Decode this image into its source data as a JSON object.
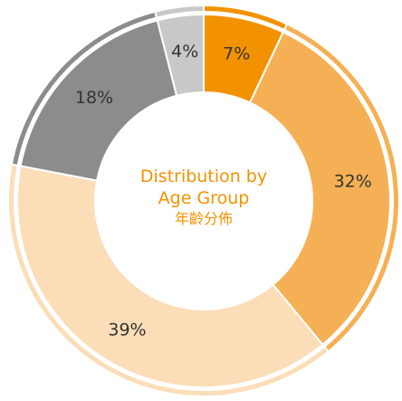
{
  "chart_data": {
    "type": "donut",
    "title": "Distribution by Age Group",
    "subtitle": "年齡分佈",
    "values": [
      7,
      32,
      39,
      18,
      4
    ],
    "value_labels": [
      "7%",
      "32%",
      "39%",
      "18%",
      "4%"
    ],
    "colors": [
      "#F39200",
      "#F5B055",
      "#FBDDB8",
      "#8C8C8C",
      "#C8C8C8"
    ]
  }
}
